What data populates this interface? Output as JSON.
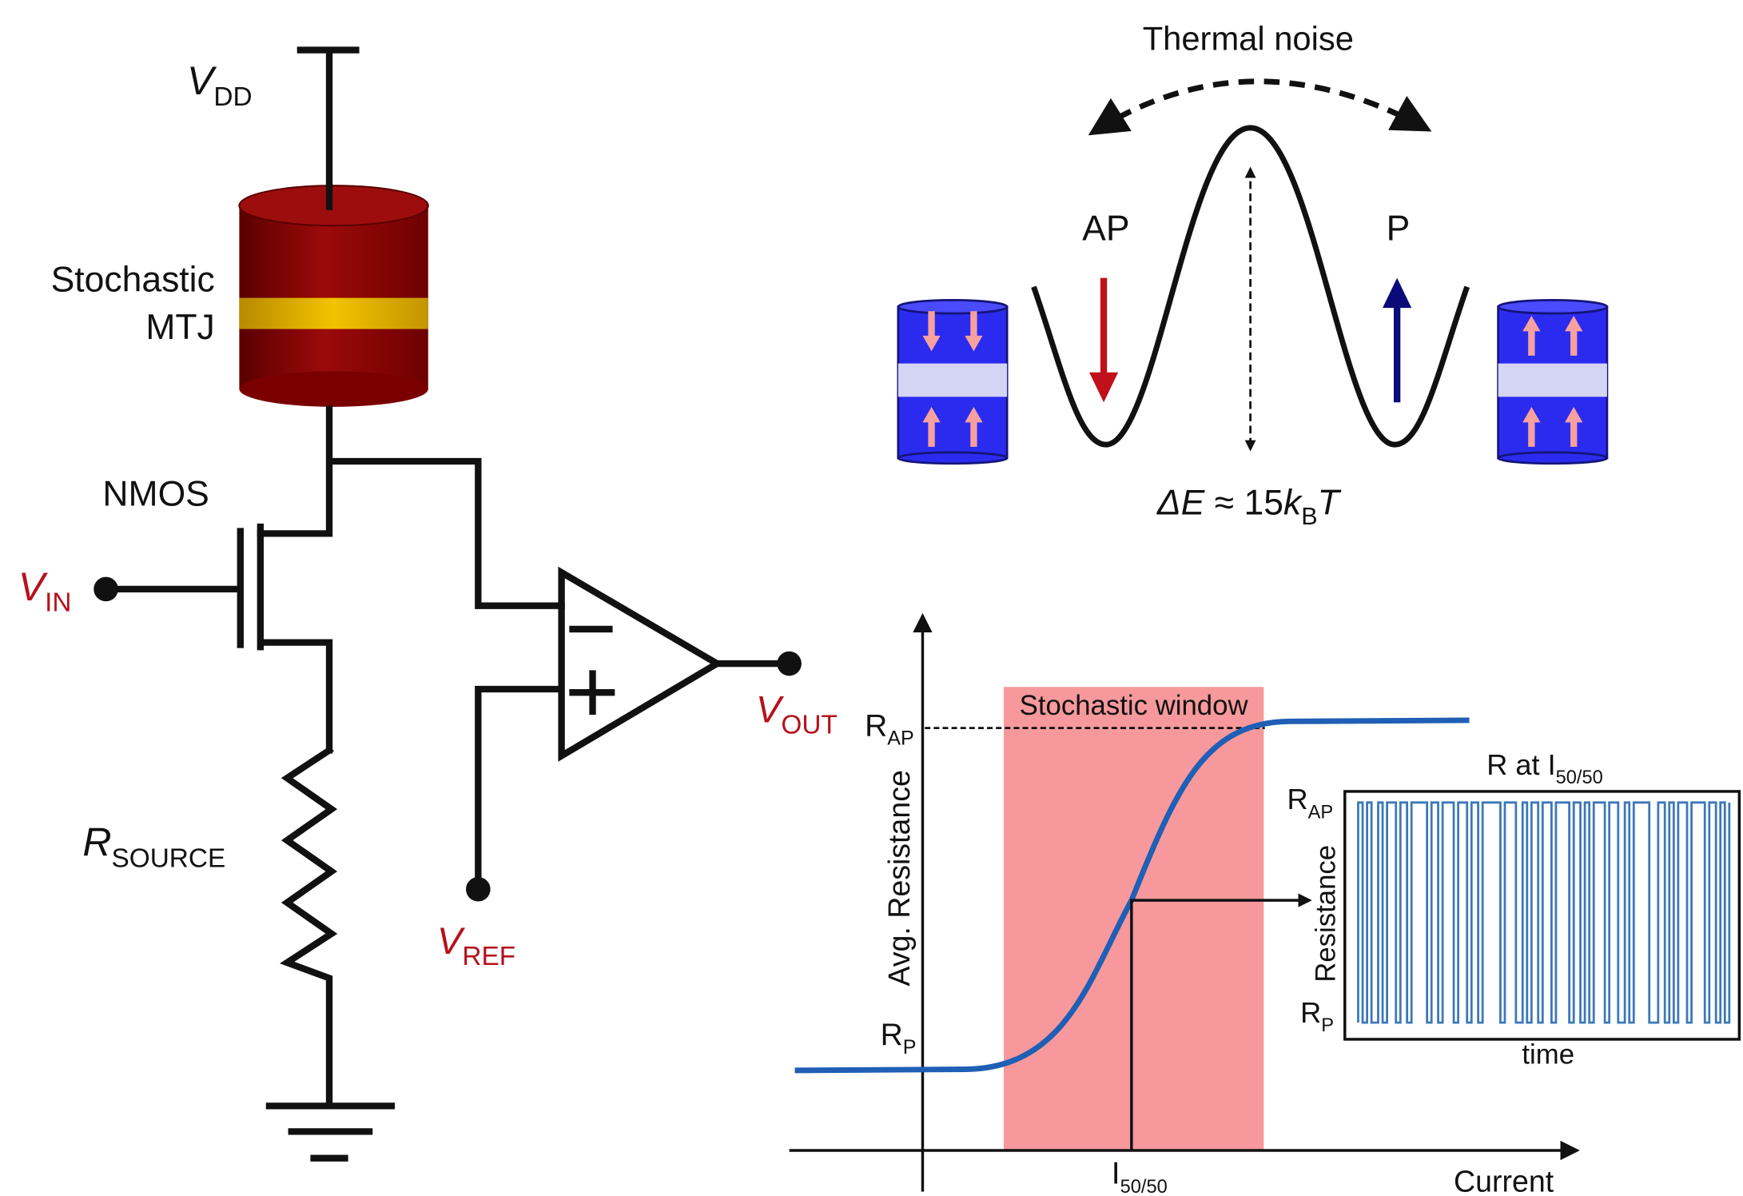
{
  "circuit": {
    "vdd": {
      "main": "V",
      "sub": "DD"
    },
    "mtj": [
      "Stochastic",
      "MTJ"
    ],
    "nmos": "NMOS",
    "vin": {
      "main": "V",
      "sub": "IN"
    },
    "vout": {
      "main": "V",
      "sub": "OUT"
    },
    "vref": {
      "main": "V",
      "sub": "REF"
    },
    "rsource": {
      "main": "R",
      "sub": "SOURCE"
    }
  },
  "energy": {
    "title": "Thermal noise",
    "ap": "AP",
    "p": "P",
    "barrier": {
      "delta": "ΔE",
      "approx": " ≈ 15",
      "k": "k",
      "sub": "B",
      "t": "T"
    }
  },
  "plot": {
    "window": "Stochastic window",
    "y_label": "Avg. Resistance",
    "x_label": "Current",
    "r_ap": {
      "main": "R",
      "sub": "AP"
    },
    "r_p": {
      "main": "R",
      "sub": "P"
    },
    "i_5050": {
      "main": "I",
      "sub": "50/50"
    },
    "inset": {
      "title": {
        "main": "R at I",
        "sub": "50/50"
      },
      "y_label": "Resistance",
      "x_label": "time",
      "r_ap": {
        "main": "R",
        "sub": "AP"
      },
      "r_p": {
        "main": "R",
        "sub": "P"
      }
    }
  }
}
